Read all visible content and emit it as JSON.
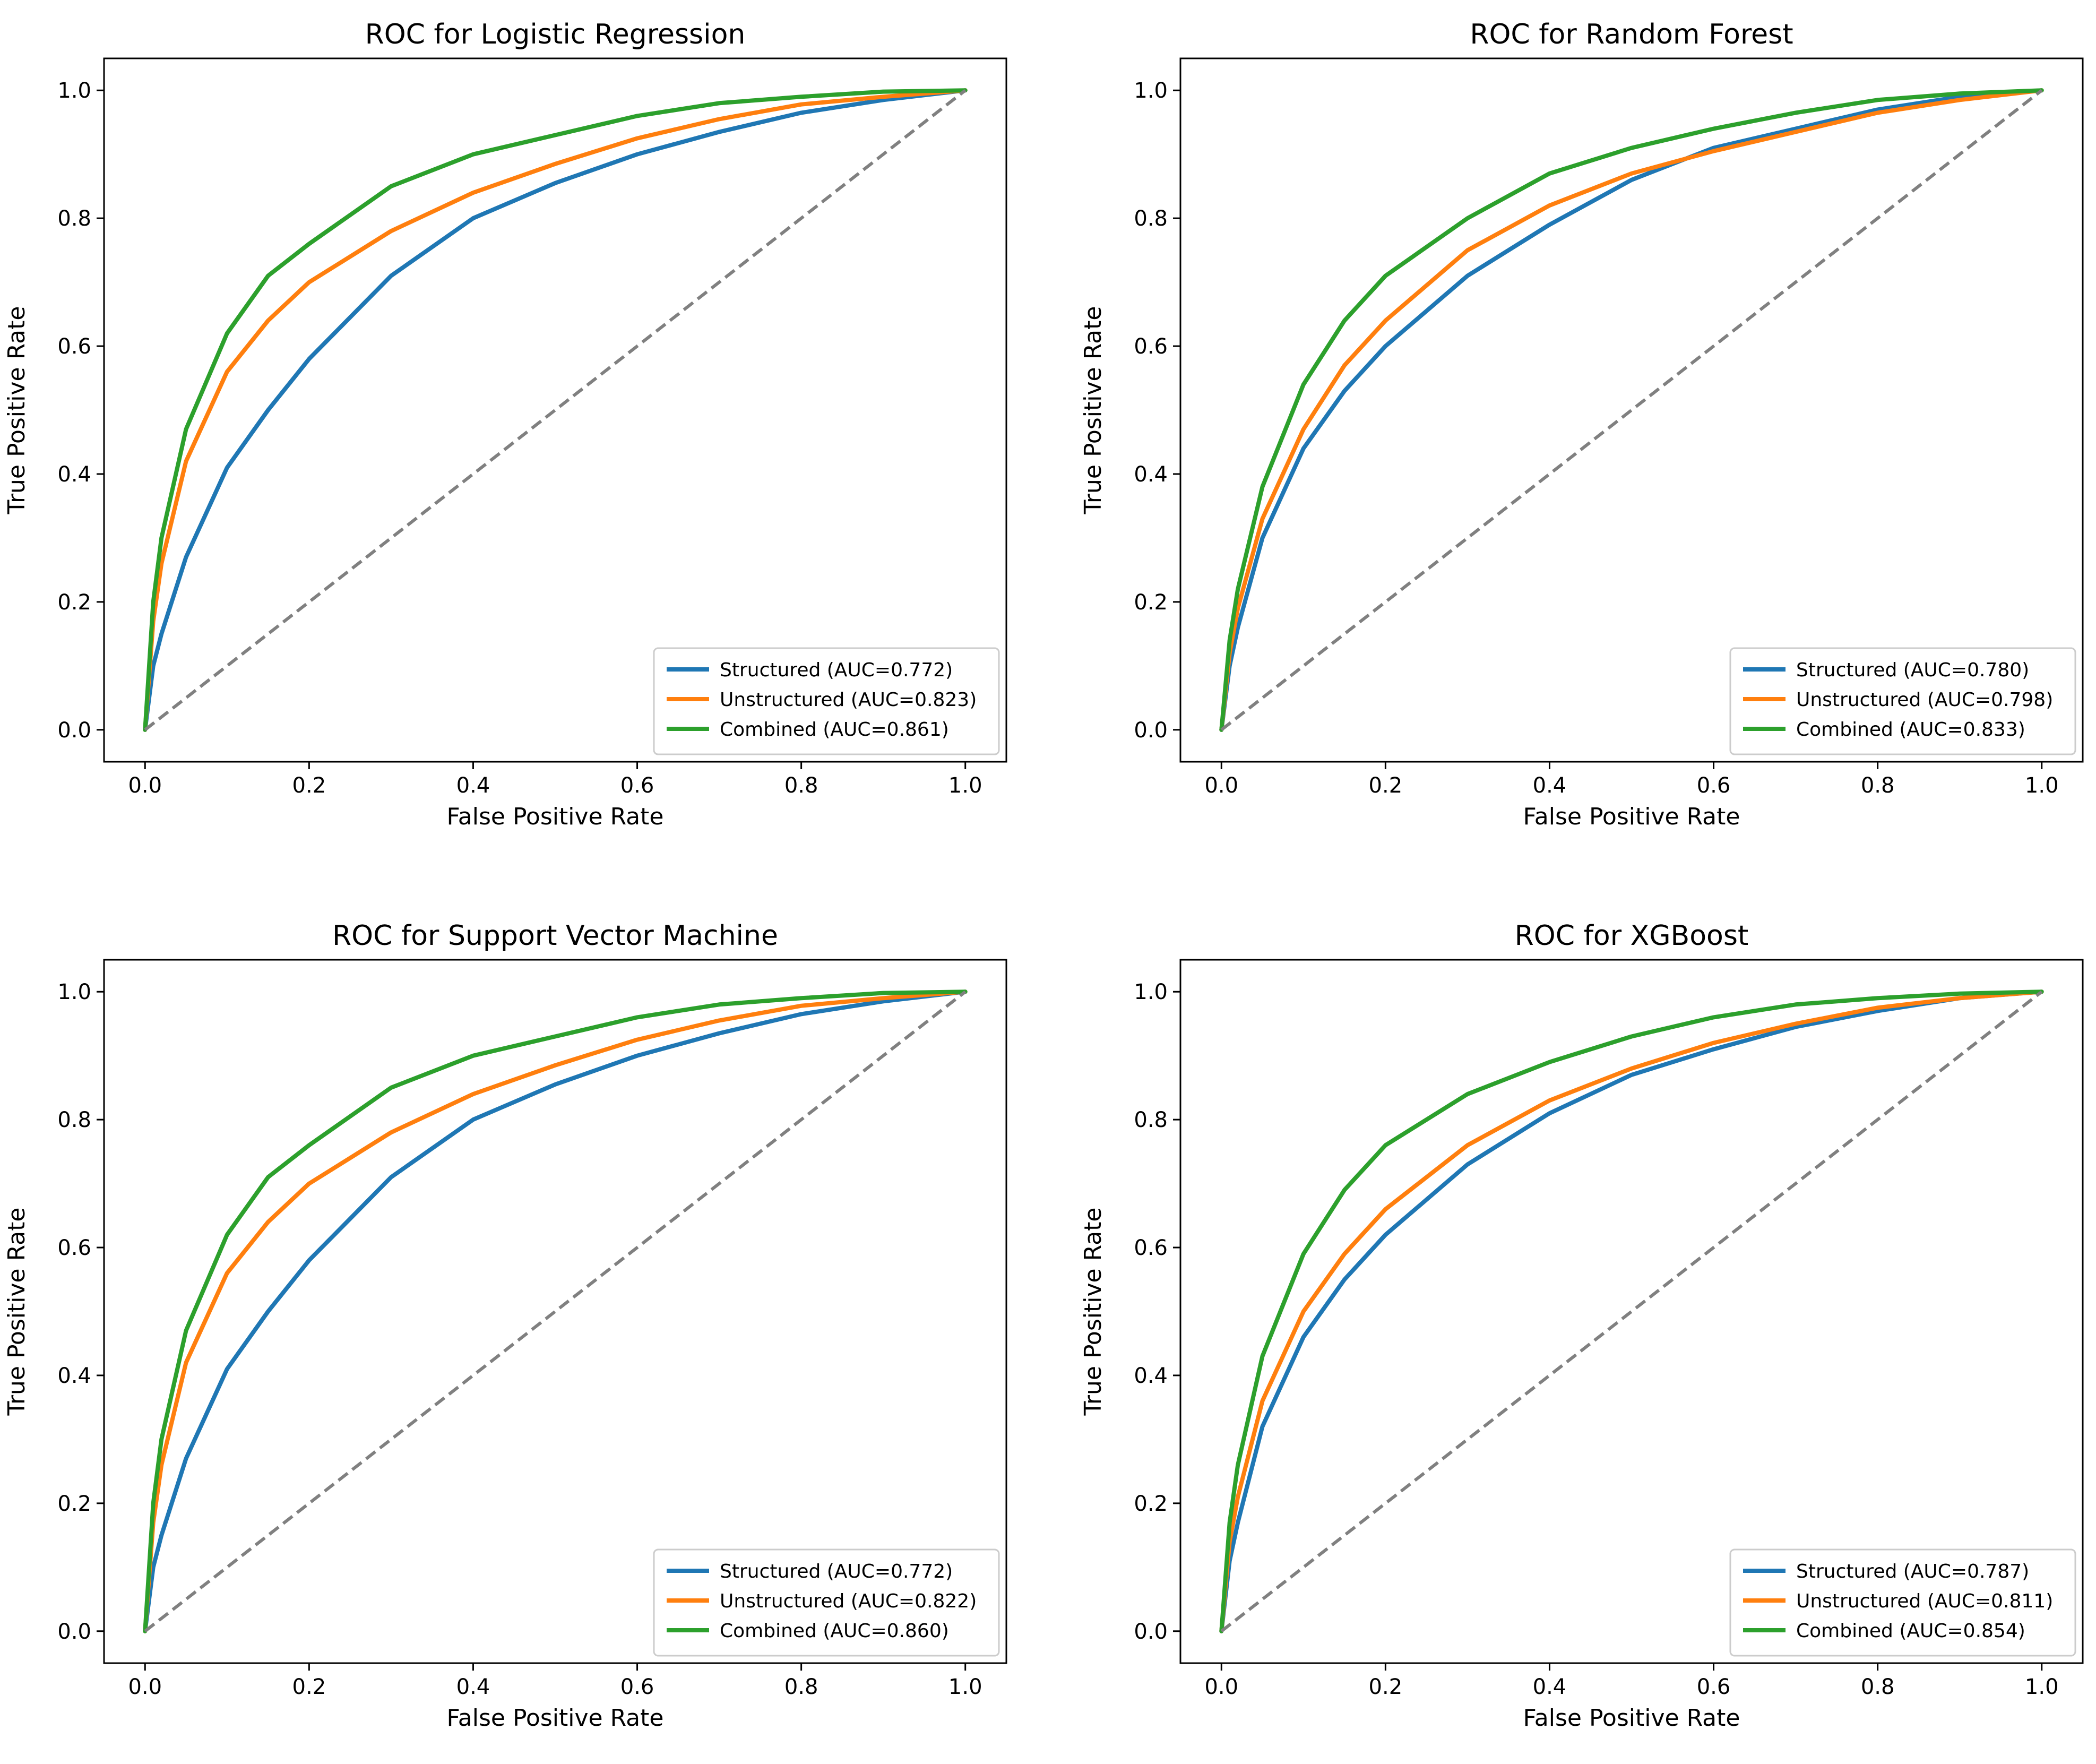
{
  "figure": {
    "colors": {
      "structured": "#1f77b4",
      "unstructured": "#ff7f0e",
      "combined": "#2ca02c",
      "chance": "#808080"
    }
  },
  "chart_data": [
    {
      "type": "line",
      "title": "ROC for Logistic Regression",
      "xlabel": "False Positive Rate",
      "ylabel": "True Positive Rate",
      "xlim": [
        -0.05,
        1.05
      ],
      "ylim": [
        -0.05,
        1.05
      ],
      "xticks": [
        "0.0",
        "0.2",
        "0.4",
        "0.6",
        "0.8",
        "1.0"
      ],
      "yticks": [
        "0.0",
        "0.2",
        "0.4",
        "0.6",
        "0.8",
        "1.0"
      ],
      "legend_position": "lower-right",
      "grid": false,
      "series": [
        {
          "name": "Structured (AUC=0.772)",
          "key": "structured",
          "auc": 0.772,
          "x": [
            0,
            0.01,
            0.02,
            0.05,
            0.1,
            0.15,
            0.2,
            0.3,
            0.4,
            0.5,
            0.6,
            0.7,
            0.8,
            0.9,
            1.0
          ],
          "y": [
            0,
            0.1,
            0.15,
            0.27,
            0.41,
            0.5,
            0.58,
            0.71,
            0.8,
            0.855,
            0.9,
            0.935,
            0.965,
            0.985,
            1.0
          ]
        },
        {
          "name": "Unstructured (AUC=0.823)",
          "key": "unstructured",
          "auc": 0.823,
          "x": [
            0,
            0.01,
            0.02,
            0.05,
            0.1,
            0.15,
            0.2,
            0.3,
            0.4,
            0.5,
            0.6,
            0.7,
            0.8,
            0.9,
            1.0
          ],
          "y": [
            0,
            0.17,
            0.26,
            0.42,
            0.56,
            0.64,
            0.7,
            0.78,
            0.84,
            0.885,
            0.925,
            0.955,
            0.978,
            0.99,
            1.0
          ]
        },
        {
          "name": "Combined (AUC=0.861)",
          "key": "combined",
          "auc": 0.861,
          "x": [
            0,
            0.01,
            0.02,
            0.05,
            0.1,
            0.15,
            0.2,
            0.3,
            0.4,
            0.5,
            0.6,
            0.7,
            0.8,
            0.9,
            1.0
          ],
          "y": [
            0,
            0.2,
            0.3,
            0.47,
            0.62,
            0.71,
            0.76,
            0.85,
            0.9,
            0.93,
            0.96,
            0.98,
            0.99,
            0.998,
            1.0
          ]
        },
        {
          "name": "Chance",
          "key": "chance",
          "dashed": true,
          "show_in_legend": false,
          "x": [
            0,
            1
          ],
          "y": [
            0,
            1
          ]
        }
      ]
    },
    {
      "type": "line",
      "title": "ROC for Random Forest",
      "xlabel": "False Positive Rate",
      "ylabel": "True Positive Rate",
      "xlim": [
        -0.05,
        1.05
      ],
      "ylim": [
        -0.05,
        1.05
      ],
      "xticks": [
        "0.0",
        "0.2",
        "0.4",
        "0.6",
        "0.8",
        "1.0"
      ],
      "yticks": [
        "0.0",
        "0.2",
        "0.4",
        "0.6",
        "0.8",
        "1.0"
      ],
      "legend_position": "lower-right",
      "grid": false,
      "series": [
        {
          "name": "Structured (AUC=0.780)",
          "key": "structured",
          "auc": 0.78,
          "x": [
            0,
            0.01,
            0.02,
            0.05,
            0.1,
            0.15,
            0.2,
            0.3,
            0.4,
            0.5,
            0.6,
            0.7,
            0.8,
            0.9,
            1.0
          ],
          "y": [
            0,
            0.1,
            0.16,
            0.3,
            0.44,
            0.53,
            0.6,
            0.71,
            0.79,
            0.86,
            0.91,
            0.94,
            0.97,
            0.99,
            1.0
          ]
        },
        {
          "name": "Unstructured (AUC=0.798)",
          "key": "unstructured",
          "auc": 0.798,
          "x": [
            0,
            0.01,
            0.02,
            0.05,
            0.1,
            0.15,
            0.2,
            0.3,
            0.4,
            0.5,
            0.6,
            0.7,
            0.8,
            0.9,
            1.0
          ],
          "y": [
            0,
            0.12,
            0.19,
            0.33,
            0.47,
            0.57,
            0.64,
            0.75,
            0.82,
            0.87,
            0.905,
            0.935,
            0.965,
            0.985,
            1.0
          ]
        },
        {
          "name": "Combined (AUC=0.833)",
          "key": "combined",
          "auc": 0.833,
          "x": [
            0,
            0.01,
            0.02,
            0.05,
            0.1,
            0.15,
            0.2,
            0.3,
            0.4,
            0.5,
            0.6,
            0.7,
            0.8,
            0.9,
            1.0
          ],
          "y": [
            0,
            0.14,
            0.22,
            0.38,
            0.54,
            0.64,
            0.71,
            0.8,
            0.87,
            0.91,
            0.94,
            0.965,
            0.985,
            0.995,
            1.0
          ]
        },
        {
          "name": "Chance",
          "key": "chance",
          "dashed": true,
          "show_in_legend": false,
          "x": [
            0,
            1
          ],
          "y": [
            0,
            1
          ]
        }
      ]
    },
    {
      "type": "line",
      "title": "ROC for Support Vector Machine",
      "xlabel": "False Positive Rate",
      "ylabel": "True Positive Rate",
      "xlim": [
        -0.05,
        1.05
      ],
      "ylim": [
        -0.05,
        1.05
      ],
      "xticks": [
        "0.0",
        "0.2",
        "0.4",
        "0.6",
        "0.8",
        "1.0"
      ],
      "yticks": [
        "0.0",
        "0.2",
        "0.4",
        "0.6",
        "0.8",
        "1.0"
      ],
      "legend_position": "lower-right",
      "grid": false,
      "series": [
        {
          "name": "Structured (AUC=0.772)",
          "key": "structured",
          "auc": 0.772,
          "x": [
            0,
            0.01,
            0.02,
            0.05,
            0.1,
            0.15,
            0.2,
            0.3,
            0.4,
            0.5,
            0.6,
            0.7,
            0.8,
            0.9,
            1.0
          ],
          "y": [
            0,
            0.1,
            0.15,
            0.27,
            0.41,
            0.5,
            0.58,
            0.71,
            0.8,
            0.855,
            0.9,
            0.935,
            0.965,
            0.985,
            1.0
          ]
        },
        {
          "name": "Unstructured (AUC=0.822)",
          "key": "unstructured",
          "auc": 0.822,
          "x": [
            0,
            0.01,
            0.02,
            0.05,
            0.1,
            0.15,
            0.2,
            0.3,
            0.4,
            0.5,
            0.6,
            0.7,
            0.8,
            0.9,
            1.0
          ],
          "y": [
            0,
            0.17,
            0.26,
            0.42,
            0.56,
            0.64,
            0.7,
            0.78,
            0.84,
            0.885,
            0.925,
            0.955,
            0.978,
            0.99,
            1.0
          ]
        },
        {
          "name": "Combined (AUC=0.860)",
          "key": "combined",
          "auc": 0.86,
          "x": [
            0,
            0.01,
            0.02,
            0.05,
            0.1,
            0.15,
            0.2,
            0.3,
            0.4,
            0.5,
            0.6,
            0.7,
            0.8,
            0.9,
            1.0
          ],
          "y": [
            0,
            0.2,
            0.3,
            0.47,
            0.62,
            0.71,
            0.76,
            0.85,
            0.9,
            0.93,
            0.96,
            0.98,
            0.99,
            0.998,
            1.0
          ]
        },
        {
          "name": "Chance",
          "key": "chance",
          "dashed": true,
          "show_in_legend": false,
          "x": [
            0,
            1
          ],
          "y": [
            0,
            1
          ]
        }
      ]
    },
    {
      "type": "line",
      "title": "ROC for XGBoost",
      "xlabel": "False Positive Rate",
      "ylabel": "True Positive Rate",
      "xlim": [
        -0.05,
        1.05
      ],
      "ylim": [
        -0.05,
        1.05
      ],
      "xticks": [
        "0.0",
        "0.2",
        "0.4",
        "0.6",
        "0.8",
        "1.0"
      ],
      "yticks": [
        "0.0",
        "0.2",
        "0.4",
        "0.6",
        "0.8",
        "1.0"
      ],
      "legend_position": "lower-right",
      "grid": false,
      "series": [
        {
          "name": "Structured (AUC=0.787)",
          "key": "structured",
          "auc": 0.787,
          "x": [
            0,
            0.01,
            0.02,
            0.05,
            0.1,
            0.15,
            0.2,
            0.3,
            0.4,
            0.5,
            0.6,
            0.7,
            0.8,
            0.9,
            1.0
          ],
          "y": [
            0,
            0.11,
            0.17,
            0.32,
            0.46,
            0.55,
            0.62,
            0.73,
            0.81,
            0.87,
            0.91,
            0.945,
            0.97,
            0.99,
            1.0
          ]
        },
        {
          "name": "Unstructured (AUC=0.811)",
          "key": "unstructured",
          "auc": 0.811,
          "x": [
            0,
            0.01,
            0.02,
            0.05,
            0.1,
            0.15,
            0.2,
            0.3,
            0.4,
            0.5,
            0.6,
            0.7,
            0.8,
            0.9,
            1.0
          ],
          "y": [
            0,
            0.14,
            0.21,
            0.36,
            0.5,
            0.59,
            0.66,
            0.76,
            0.83,
            0.88,
            0.92,
            0.95,
            0.975,
            0.99,
            1.0
          ]
        },
        {
          "name": "Combined (AUC=0.854)",
          "key": "combined",
          "auc": 0.854,
          "x": [
            0,
            0.01,
            0.02,
            0.05,
            0.1,
            0.15,
            0.2,
            0.3,
            0.4,
            0.5,
            0.6,
            0.7,
            0.8,
            0.9,
            1.0
          ],
          "y": [
            0,
            0.17,
            0.26,
            0.43,
            0.59,
            0.69,
            0.76,
            0.84,
            0.89,
            0.93,
            0.96,
            0.98,
            0.99,
            0.997,
            1.0
          ]
        },
        {
          "name": "Chance",
          "key": "chance",
          "dashed": true,
          "show_in_legend": false,
          "x": [
            0,
            1
          ],
          "y": [
            0,
            1
          ]
        }
      ]
    }
  ]
}
